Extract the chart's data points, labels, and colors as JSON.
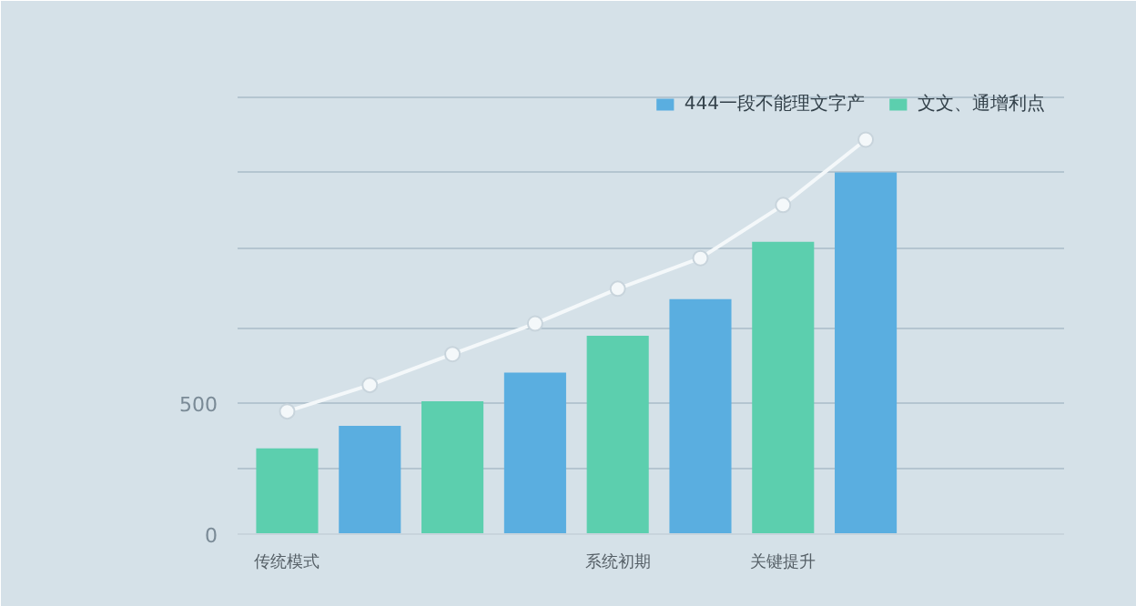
{
  "chart_data": {
    "type": "bar",
    "categories": [
      "传统模式",
      null,
      null,
      null,
      "系统初期",
      null,
      "关键提升",
      null
    ],
    "series": [
      {
        "name": "444一段不能理文字产",
        "color": "#5aaee0",
        "values": [
          null,
          414,
          null,
          617,
          null,
          898,
          null,
          1383
        ]
      },
      {
        "name": "文文、通增利点",
        "color": "#5ccfae",
        "values": [
          328,
          null,
          508,
          null,
          758,
          null,
          1117,
          null
        ]
      },
      {
        "type": "line",
        "color": "#f4f8fa",
        "values": [
          469,
          570,
          688,
          805,
          938,
          1055,
          1258,
          1508
        ]
      }
    ],
    "ylim": [
      0,
      1760
    ],
    "yticks": [
      0,
      {
        "value": 250,
        "label": null
      },
      500,
      {
        "value": 789,
        "label": null
      },
      {
        "value": 1094,
        "label": null
      },
      {
        "value": 1383,
        "label": null
      },
      {
        "value": 1672,
        "label": null
      }
    ],
    "grid": "y",
    "legend": "top right",
    "marker": "circle",
    "line_style": "solid"
  }
}
